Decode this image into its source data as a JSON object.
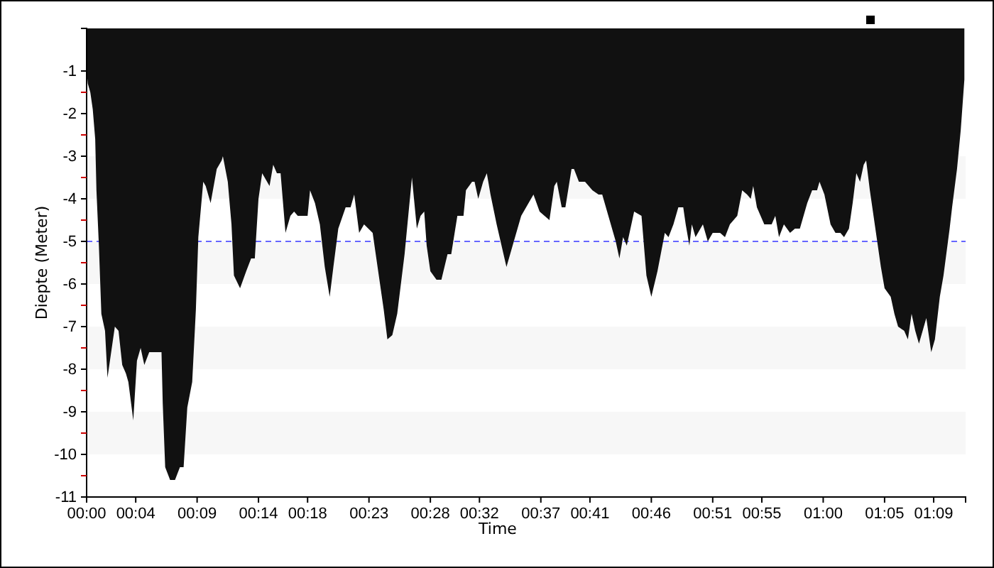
{
  "chart_data": {
    "type": "area",
    "xlabel": "Time",
    "ylabel": "Diepte (Meter)",
    "xlim": [
      0,
      71.6
    ],
    "ylim": [
      -11,
      0
    ],
    "xticks": [
      {
        "value": 0,
        "label": "00:00"
      },
      {
        "value": 4,
        "label": "00:04"
      },
      {
        "value": 9,
        "label": "00:09"
      },
      {
        "value": 14,
        "label": "00:14"
      },
      {
        "value": 18,
        "label": "00:18"
      },
      {
        "value": 23,
        "label": "00:23"
      },
      {
        "value": 28,
        "label": "00:28"
      },
      {
        "value": 32,
        "label": "00:32"
      },
      {
        "value": 37,
        "label": "00:37"
      },
      {
        "value": 41,
        "label": "00:41"
      },
      {
        "value": 46,
        "label": "00:46"
      },
      {
        "value": 51,
        "label": "00:51"
      },
      {
        "value": 55,
        "label": "00:55"
      },
      {
        "value": 60,
        "label": "01:00"
      },
      {
        "value": 65,
        "label": "01:05"
      },
      {
        "value": 69,
        "label": "01:09"
      }
    ],
    "yticks": [
      -1,
      {
        "value": -1.5,
        "label": null
      },
      -2,
      {
        "value": -2.5,
        "label": null
      },
      -3,
      {
        "value": -3.5,
        "label": null
      },
      -4,
      {
        "value": -4.5,
        "label": null
      },
      -5,
      {
        "value": -5.5,
        "label": null
      },
      -6,
      {
        "value": -6.5,
        "label": null
      },
      -7,
      {
        "value": -7.5,
        "label": null
      },
      -8,
      {
        "value": -8.5,
        "label": null
      },
      -9,
      {
        "value": -9.5,
        "label": null
      },
      -10,
      {
        "value": -10.5,
        "label": null
      },
      -11
    ],
    "bands": [
      {
        "axis": "y",
        "from": -4,
        "to": -3,
        "color": "#f7f7f7"
      },
      {
        "axis": "y",
        "from": -6,
        "to": -5,
        "color": "#f7f7f7"
      },
      {
        "axis": "y",
        "from": -8,
        "to": -7,
        "color": "#f7f7f7"
      },
      {
        "axis": "y",
        "from": -10,
        "to": -9,
        "color": "#f7f7f7"
      }
    ],
    "ref_lines": [
      {
        "axis": "y",
        "value": -5,
        "color": "#6666ff",
        "line_style": "dashed"
      }
    ],
    "series": [
      {
        "color": "#111111",
        "x": [
          0,
          0.1,
          0.3,
          0.5,
          0.7,
          0.8,
          1.0,
          1.2,
          1.5,
          1.7,
          2.0,
          2.3,
          2.6,
          2.9,
          3.2,
          3.4,
          3.8,
          4.1,
          4.4,
          4.7,
          5.1,
          5.7,
          6.1,
          6.2,
          6.4,
          6.8,
          7.2,
          7.6,
          7.9,
          8.2,
          8.6,
          8.9,
          9.1,
          9.5,
          9.7,
          10.1,
          10.6,
          11.0,
          11.1,
          11.5,
          11.8,
          12.0,
          12.5,
          13.0,
          13.4,
          13.7,
          14.0,
          14.3,
          14.7,
          14.9,
          15.2,
          15.5,
          15.8,
          16.2,
          16.6,
          16.9,
          17.2,
          18.0,
          18.2,
          18.6,
          19.0,
          19.4,
          19.8,
          20.1,
          20.5,
          21.1,
          21.5,
          21.8,
          22.2,
          22.6,
          23.3,
          23.6,
          24.2,
          24.5,
          24.9,
          25.3,
          25.9,
          26.5,
          26.9,
          27.2,
          27.5,
          27.7,
          28.0,
          28.5,
          28.9,
          29.4,
          29.7,
          30.2,
          30.7,
          30.9,
          31.4,
          31.6,
          31.9,
          32.3,
          32.6,
          32.9,
          33.4,
          34.2,
          34.6,
          35.4,
          36.0,
          36.4,
          36.9,
          37.3,
          37.7,
          38.1,
          38.3,
          38.7,
          39.0,
          39.5,
          39.7,
          40.1,
          40.6,
          41.2,
          41.7,
          42.0,
          42.5,
          43.1,
          43.4,
          43.7,
          44.0,
          44.6,
          45.2,
          45.6,
          46.0,
          46.5,
          47.1,
          47.4,
          47.8,
          48.2,
          48.6,
          48.8,
          49.1,
          49.3,
          49.6,
          50.2,
          50.6,
          51.0,
          51.6,
          52.0,
          52.4,
          53.0,
          53.4,
          53.8,
          54.1,
          54.3,
          54.6,
          55.2,
          55.8,
          56.1,
          56.4,
          56.8,
          57.3,
          57.7,
          58.1,
          58.7,
          59.1,
          59.5,
          59.7,
          60.1,
          60.6,
          61.0,
          61.4,
          61.7,
          62.1,
          62.4,
          62.7,
          63.0,
          63.3,
          63.5,
          63.8,
          64.3,
          64.7,
          65.0,
          65.5,
          65.8,
          66.1,
          66.6,
          66.9,
          67.2,
          67.5,
          67.8,
          68.1,
          68.4,
          68.8,
          69.1,
          69.5,
          69.8,
          70.3,
          70.5,
          70.9,
          71.2,
          71.5
        ],
        "values": [
          -1.0,
          -1.3,
          -1.5,
          -1.9,
          -2.6,
          -3.8,
          -5.1,
          -6.7,
          -7.1,
          -8.2,
          -7.6,
          -7.0,
          -7.1,
          -7.9,
          -8.1,
          -8.3,
          -9.2,
          -7.8,
          -7.5,
          -7.9,
          -7.6,
          -7.6,
          -7.6,
          -8.8,
          -10.3,
          -10.6,
          -10.6,
          -10.3,
          -10.3,
          -8.9,
          -8.3,
          -6.6,
          -4.9,
          -3.6,
          -3.7,
          -4.1,
          -3.3,
          -3.1,
          -3.0,
          -3.6,
          -4.6,
          -5.8,
          -6.1,
          -5.7,
          -5.4,
          -5.4,
          -4.0,
          -3.4,
          -3.6,
          -3.7,
          -3.2,
          -3.4,
          -3.4,
          -4.8,
          -4.4,
          -4.3,
          -4.4,
          -4.4,
          -3.8,
          -4.1,
          -4.6,
          -5.6,
          -6.3,
          -5.6,
          -4.7,
          -4.2,
          -4.2,
          -3.9,
          -4.8,
          -4.6,
          -4.8,
          -5.4,
          -6.6,
          -7.3,
          -7.2,
          -6.7,
          -5.3,
          -3.5,
          -4.7,
          -4.4,
          -4.3,
          -5.1,
          -5.7,
          -5.9,
          -5.9,
          -5.3,
          -5.3,
          -4.4,
          -4.4,
          -3.8,
          -3.6,
          -3.6,
          -4.0,
          -3.6,
          -3.4,
          -3.9,
          -4.6,
          -5.6,
          -5.2,
          -4.4,
          -4.1,
          -3.9,
          -4.3,
          -4.4,
          -4.5,
          -3.7,
          -3.6,
          -4.2,
          -4.2,
          -3.3,
          -3.3,
          -3.6,
          -3.6,
          -3.8,
          -3.9,
          -3.9,
          -4.4,
          -5.0,
          -5.4,
          -4.9,
          -5.1,
          -4.3,
          -4.4,
          -5.8,
          -6.3,
          -5.7,
          -4.8,
          -4.9,
          -4.6,
          -4.2,
          -4.2,
          -4.6,
          -5.1,
          -4.6,
          -4.9,
          -4.6,
          -5.0,
          -4.8,
          -4.8,
          -4.9,
          -4.6,
          -4.4,
          -3.8,
          -3.9,
          -4.0,
          -3.7,
          -4.2,
          -4.6,
          -4.6,
          -4.4,
          -4.9,
          -4.6,
          -4.8,
          -4.7,
          -4.7,
          -4.1,
          -3.8,
          -3.8,
          -3.6,
          -3.9,
          -4.6,
          -4.8,
          -4.8,
          -4.9,
          -4.7,
          -4.1,
          -3.4,
          -3.6,
          -3.2,
          -3.1,
          -3.8,
          -4.8,
          -5.6,
          -6.1,
          -6.3,
          -6.7,
          -7.0,
          -7.1,
          -7.3,
          -6.7,
          -7.1,
          -7.4,
          -7.1,
          -6.8,
          -7.6,
          -7.3,
          -6.3,
          -5.8,
          -4.7,
          -4.2,
          -3.3,
          -2.4,
          -1.2
        ]
      }
    ]
  }
}
